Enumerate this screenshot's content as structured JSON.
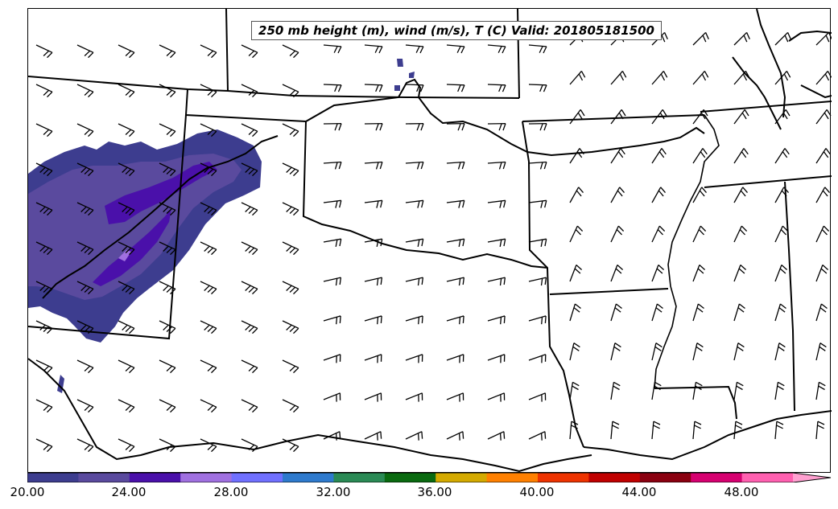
{
  "title": "250 mb height (m), wind (m/s), T (C) Valid: 201805181500",
  "colorbar": {
    "colors": [
      "#3d3d8f",
      "#5a4a9e",
      "#4a10aa",
      "#a070e0",
      "#7070ff",
      "#2e7acd",
      "#2a8a55",
      "#0a6a10",
      "#d4aa00",
      "#ff8000",
      "#ee3300",
      "#c00000",
      "#8a0010",
      "#d60070",
      "#ff60b0"
    ],
    "extend_color": "#ffa0d0",
    "ticks": [
      "20.00",
      "24.00",
      "28.00",
      "32.00",
      "36.00",
      "40.00",
      "44.00",
      "48.00"
    ]
  }
}
